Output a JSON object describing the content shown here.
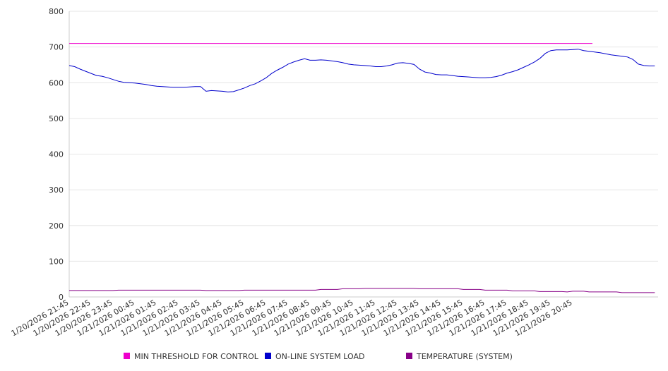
{
  "chart_data": {
    "type": "line",
    "title": "",
    "xlabel": "",
    "ylabel": "",
    "ylim": [
      0,
      800
    ],
    "yticks": [
      0,
      100,
      200,
      300,
      400,
      500,
      600,
      700,
      800
    ],
    "grid": true,
    "legend_position": "bottom",
    "categories": [
      "1/20/2026 21:45",
      "1/20/2026 22:45",
      "1/20/2026 23:45",
      "1/21/2026 00:45",
      "1/21/2026 01:45",
      "1/21/2026 02:45",
      "1/21/2026 03:45",
      "1/21/2026 04:45",
      "1/21/2026 05:45",
      "1/21/2026 06:45",
      "1/21/2026 07:45",
      "1/21/2026 08:45",
      "1/21/2026 09:45",
      "1/21/2026 10:45",
      "1/21/2026 11:45",
      "1/21/2026 12:45",
      "1/21/2026 13:45",
      "1/21/2026 14:45",
      "1/21/2026 15:45",
      "1/21/2026 16:45",
      "1/21/2026 17:45",
      "1/21/2026 18:45",
      "1/21/2026 19:45",
      "1/21/2026 20:45"
    ],
    "x_hours_start": "1/20/2026 21:45",
    "series": [
      {
        "name": "MIN THRESHOLD FOR CONTROL",
        "color": "#ee00cc",
        "points": [
          [
            0,
            710
          ],
          [
            23.9,
            710
          ]
        ]
      },
      {
        "name": "ON-LINE SYSTEM LOAD",
        "color": "#0000cc",
        "points": [
          [
            0,
            648
          ],
          [
            0.25,
            645
          ],
          [
            0.5,
            638
          ],
          [
            0.75,
            632
          ],
          [
            1,
            626
          ],
          [
            1.25,
            620
          ],
          [
            1.5,
            618
          ],
          [
            1.75,
            614
          ],
          [
            2,
            609
          ],
          [
            2.25,
            604
          ],
          [
            2.5,
            601
          ],
          [
            2.75,
            600
          ],
          [
            3,
            599
          ],
          [
            3.25,
            597
          ],
          [
            3.5,
            595
          ],
          [
            3.75,
            592
          ],
          [
            4,
            590
          ],
          [
            4.25,
            589
          ],
          [
            4.5,
            588
          ],
          [
            4.75,
            587
          ],
          [
            5,
            587
          ],
          [
            5.25,
            587
          ],
          [
            5.5,
            588
          ],
          [
            5.75,
            589
          ],
          [
            6,
            589
          ],
          [
            6.25,
            576
          ],
          [
            6.5,
            578
          ],
          [
            6.75,
            577
          ],
          [
            7,
            576
          ],
          [
            7.25,
            574
          ],
          [
            7.5,
            575
          ],
          [
            7.75,
            580
          ],
          [
            8,
            585
          ],
          [
            8.25,
            592
          ],
          [
            8.5,
            597
          ],
          [
            8.75,
            605
          ],
          [
            9,
            614
          ],
          [
            9.25,
            626
          ],
          [
            9.5,
            635
          ],
          [
            9.75,
            643
          ],
          [
            10,
            652
          ],
          [
            10.25,
            658
          ],
          [
            10.5,
            663
          ],
          [
            10.75,
            667
          ],
          [
            11,
            663
          ],
          [
            11.25,
            663
          ],
          [
            11.5,
            664
          ],
          [
            11.75,
            663
          ],
          [
            12,
            661
          ],
          [
            12.25,
            659
          ],
          [
            12.5,
            656
          ],
          [
            12.75,
            652
          ],
          [
            13,
            650
          ],
          [
            13.25,
            649
          ],
          [
            13.5,
            648
          ],
          [
            13.75,
            647
          ],
          [
            14,
            645
          ],
          [
            14.25,
            645
          ],
          [
            14.5,
            647
          ],
          [
            14.75,
            650
          ],
          [
            15,
            655
          ],
          [
            15.25,
            656
          ],
          [
            15.5,
            654
          ],
          [
            15.75,
            651
          ],
          [
            16,
            638
          ],
          [
            16.25,
            630
          ],
          [
            16.5,
            627
          ],
          [
            16.75,
            623
          ],
          [
            17,
            622
          ],
          [
            17.25,
            622
          ],
          [
            17.5,
            620
          ],
          [
            17.75,
            618
          ],
          [
            18,
            617
          ],
          [
            18.25,
            616
          ],
          [
            18.5,
            615
          ],
          [
            18.75,
            614
          ],
          [
            19,
            614
          ],
          [
            19.25,
            615
          ],
          [
            19.5,
            617
          ],
          [
            19.75,
            621
          ],
          [
            20,
            627
          ],
          [
            20.25,
            631
          ],
          [
            20.5,
            636
          ],
          [
            20.75,
            643
          ],
          [
            21,
            650
          ],
          [
            21.25,
            658
          ],
          [
            21.5,
            668
          ],
          [
            21.75,
            682
          ],
          [
            22,
            690
          ],
          [
            22.25,
            692
          ],
          [
            22.5,
            692
          ],
          [
            22.75,
            692
          ],
          [
            23,
            693
          ],
          [
            23.25,
            694
          ],
          [
            23.5,
            690
          ],
          [
            23.75,
            688
          ],
          [
            24,
            686
          ],
          [
            24.25,
            684
          ],
          [
            24.5,
            681
          ],
          [
            24.75,
            678
          ],
          [
            25,
            676
          ],
          [
            25.25,
            674
          ],
          [
            25.5,
            672
          ],
          [
            25.75,
            665
          ],
          [
            26,
            652
          ],
          [
            26.25,
            648
          ],
          [
            26.5,
            647
          ],
          [
            26.75,
            647
          ]
        ]
      },
      {
        "name": "TEMPERATURE (SYSTEM)",
        "color": "#880088",
        "points": [
          [
            0,
            18
          ],
          [
            2,
            18
          ],
          [
            2.25,
            19
          ],
          [
            6,
            19
          ],
          [
            6.25,
            18
          ],
          [
            7.75,
            18
          ],
          [
            8,
            19
          ],
          [
            11.25,
            19
          ],
          [
            11.5,
            21
          ],
          [
            12.25,
            21
          ],
          [
            12.5,
            23
          ],
          [
            13.25,
            23
          ],
          [
            13.5,
            24
          ],
          [
            15.75,
            24
          ],
          [
            16,
            23
          ],
          [
            17.75,
            23
          ],
          [
            18,
            21
          ],
          [
            18.75,
            21
          ],
          [
            19,
            19
          ],
          [
            20,
            19
          ],
          [
            20.25,
            17
          ],
          [
            21.25,
            17
          ],
          [
            21.5,
            15
          ],
          [
            22.5,
            15
          ],
          [
            22.75,
            14
          ],
          [
            23,
            16
          ],
          [
            23.5,
            16
          ],
          [
            23.75,
            14
          ],
          [
            25,
            14
          ],
          [
            25.25,
            12
          ],
          [
            26.75,
            12
          ]
        ]
      }
    ]
  }
}
